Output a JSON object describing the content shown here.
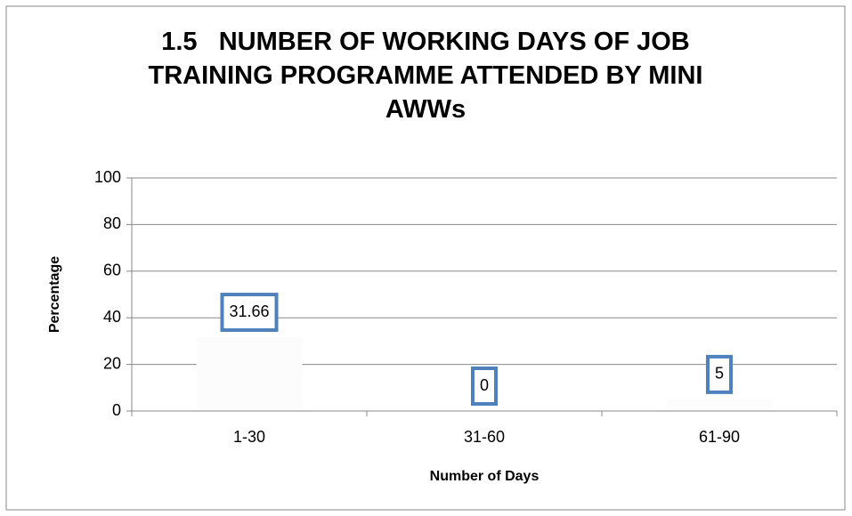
{
  "chart_data": {
    "type": "bar",
    "title": "1.5   NUMBER OF WORKING DAYS OF JOB TRAINING PROGRAMME ATTENDED BY MINI AWWs",
    "x_label": "Number of Days",
    "y_label": "Percentage",
    "categories": [
      "1-30",
      "31-60",
      "61-90"
    ],
    "values": [
      31.66,
      0,
      5
    ],
    "color": "#fcfcfc",
    "label_border_color": "#4f81bd",
    "ylim": [
      0,
      100
    ],
    "yticks": [
      0,
      20,
      40,
      60,
      80,
      100
    ],
    "grid": true
  }
}
